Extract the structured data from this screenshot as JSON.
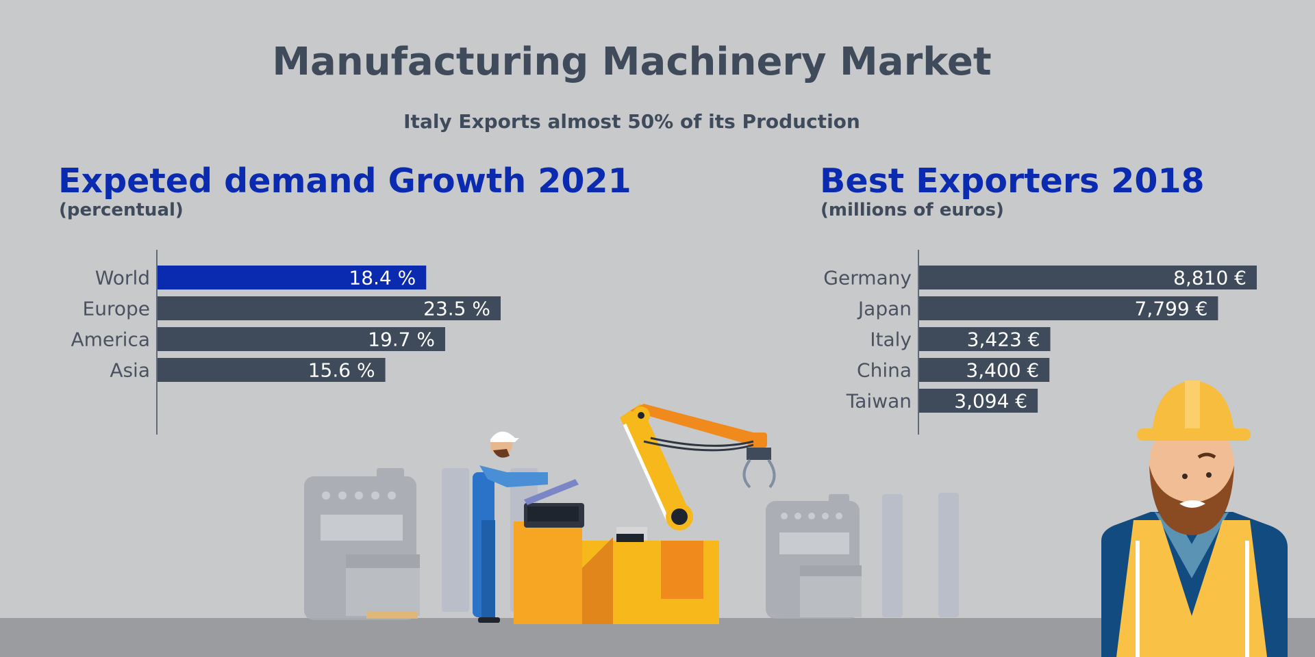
{
  "title": "Manufacturing Machinery Market",
  "subtitle": "Italy Exports almost 50% of its Production",
  "colors": {
    "background": "#c8c9cb",
    "bar_dark": "#3f4b5b",
    "bar_highlight": "#0a2bb0",
    "heading_blue": "#0a2bb0"
  },
  "chart_data": [
    {
      "type": "bar",
      "orientation": "horizontal",
      "title": "Expeted demand Growth 2021",
      "subtitle": "(percentual)",
      "categories": [
        "World",
        "Europe",
        "America",
        "Asia"
      ],
      "values": [
        18.4,
        23.5,
        19.7,
        15.6
      ],
      "labels": [
        "18.4 %",
        "23.5 %",
        "19.7 %",
        "15.6 %"
      ],
      "highlight": "World",
      "xlim": [
        0,
        23.5
      ]
    },
    {
      "type": "bar",
      "orientation": "horizontal",
      "title": "Best Exporters 2018",
      "subtitle": "(millions of euros)",
      "categories": [
        "Germany",
        "Japan",
        "Italy",
        "China",
        "Taiwan"
      ],
      "values": [
        8810,
        7799,
        3423,
        3400,
        3094
      ],
      "labels": [
        "8,810 €",
        "7,799 €",
        "3,423 €",
        "3,400 €",
        "3,094 €"
      ],
      "xlim": [
        0,
        8810
      ]
    }
  ]
}
